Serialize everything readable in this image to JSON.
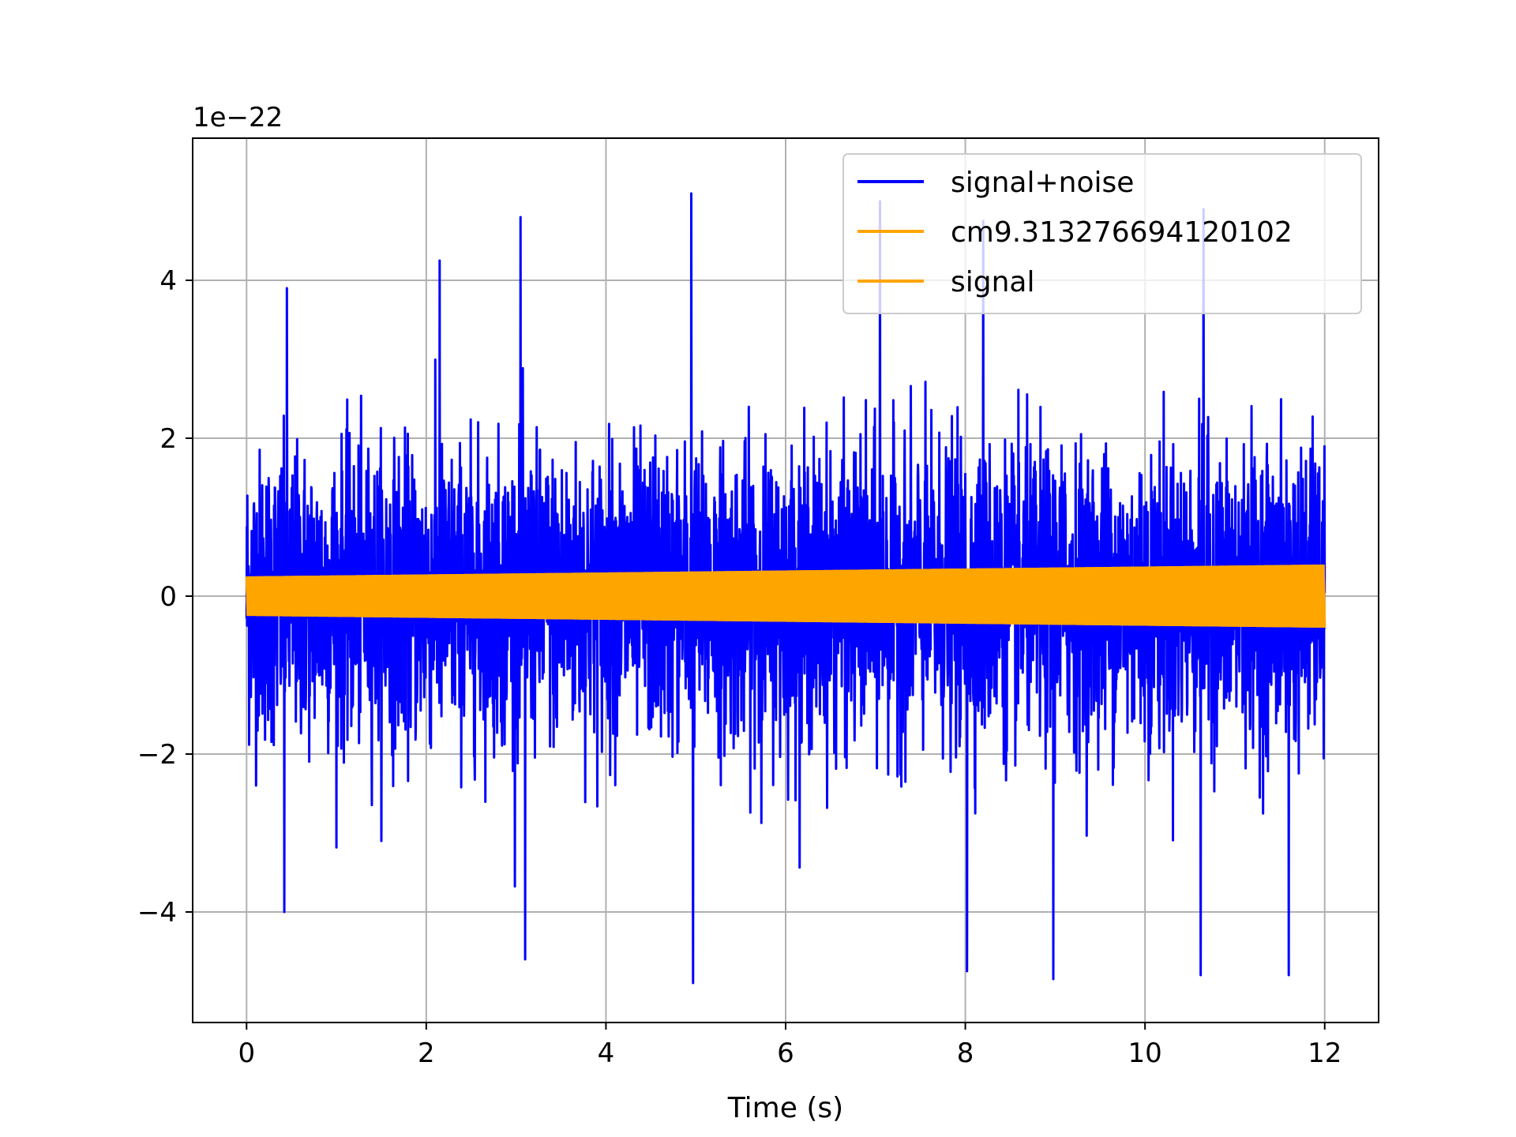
{
  "chart_data": {
    "type": "line",
    "title": "",
    "xlabel": "Time (s)",
    "ylabel": "",
    "y_offset_label": "1e−22",
    "xlim": [
      -0.6,
      12.6
    ],
    "ylim": [
      -5.4,
      5.8
    ],
    "x_ticks": [
      0,
      2,
      4,
      6,
      8,
      10,
      12
    ],
    "x_tick_labels": [
      "0",
      "2",
      "4",
      "6",
      "8",
      "10",
      "12"
    ],
    "y_ticks": [
      -4,
      -2,
      0,
      2,
      4
    ],
    "y_tick_labels": [
      "−4",
      "−2",
      "0",
      "2",
      "4"
    ],
    "grid": true,
    "legend_position": "upper right",
    "series": [
      {
        "name": "signal+noise",
        "color": "#0000ff",
        "x_range": [
          0,
          12
        ],
        "typical_amplitude": 1.6,
        "peak_max": 5.1,
        "peak_min": -4.9,
        "notable_peaks": [
          {
            "x": 0.45,
            "y": 3.9
          },
          {
            "x": 0.42,
            "y": -4.0
          },
          {
            "x": 2.15,
            "y": 4.25
          },
          {
            "x": 3.05,
            "y": 4.8
          },
          {
            "x": 3.1,
            "y": -4.6
          },
          {
            "x": 4.95,
            "y": 5.1
          },
          {
            "x": 4.97,
            "y": -4.9
          },
          {
            "x": 7.05,
            "y": 5.0
          },
          {
            "x": 8.2,
            "y": 4.75
          },
          {
            "x": 8.02,
            "y": -4.75
          },
          {
            "x": 8.98,
            "y": -4.85
          },
          {
            "x": 10.65,
            "y": 4.9
          },
          {
            "x": 10.62,
            "y": -4.8
          },
          {
            "x": 11.6,
            "y": -4.8
          }
        ]
      },
      {
        "name": "cm9.313276694120102",
        "color": "#ffa500",
        "x_range": [
          0,
          12
        ],
        "amplitude_start": 0.25,
        "amplitude_end": 0.4
      },
      {
        "name": "signal",
        "color": "#ffa500",
        "x_range": [
          0,
          12
        ],
        "amplitude_start": 0.25,
        "amplitude_end": 0.4
      }
    ]
  }
}
